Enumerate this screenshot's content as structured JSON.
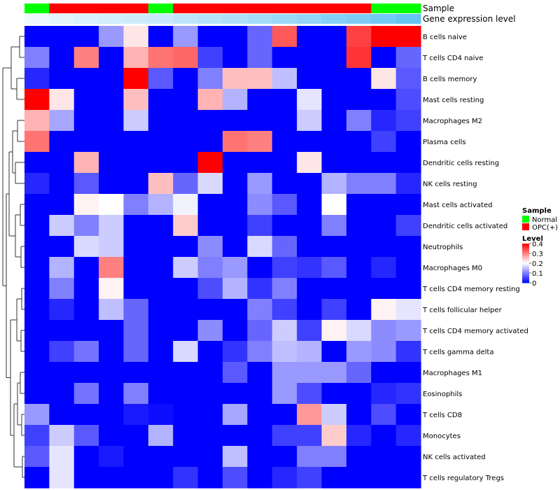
{
  "chart_data": {
    "type": "heatmap",
    "annotation_labels": {
      "sample": "Sample",
      "expression": "Gene expression level"
    },
    "samples": [
      "Normal",
      "OPC(+)",
      "OPC(+)",
      "OPC(+)",
      "OPC(+)",
      "Normal",
      "OPC(+)",
      "OPC(+)",
      "OPC(+)",
      "OPC(+)",
      "OPC(+)",
      "OPC(+)",
      "OPC(+)",
      "OPC(+)",
      "Normal",
      "Normal"
    ],
    "expression_track": [
      0.02,
      0.05,
      0.08,
      0.1,
      0.12,
      0.14,
      0.17,
      0.2,
      0.22,
      0.25,
      0.28,
      0.31,
      0.35,
      0.38,
      0.41,
      0.45
    ],
    "rows": [
      "B cells naive",
      "T cells CD4 naive",
      "B cells memory",
      "Mast cells resting",
      "Macrophages M2",
      "Plasma cells",
      "Dendritic cells resting",
      "NK cells resting",
      "Mast cells activated",
      "Dendritic cells activated",
      "Neutrophils",
      "Macrophages M0",
      "T cells CD4 memory resting",
      "T cells follicular helper",
      "T cells CD4 memory activated",
      "T cells gamma delta",
      "Macrophages M1",
      "Eosinophils",
      "T cells CD8",
      "Monocytes",
      "NK cells activated",
      "T cells regulatory  Tregs"
    ],
    "values": [
      [
        0,
        0,
        0,
        0.12,
        0.22,
        0,
        0.12,
        0,
        0,
        0.08,
        0.33,
        0,
        0,
        0.35,
        0.4,
        0.4
      ],
      [
        0.1,
        0,
        0.3,
        0,
        0.26,
        0.31,
        0.32,
        0.05,
        0,
        0.08,
        0,
        0,
        0,
        0.36,
        0,
        0.08
      ],
      [
        0.03,
        0,
        0,
        0,
        0.4,
        0.07,
        0,
        0.1,
        0.25,
        0.25,
        0.15,
        0,
        0,
        0,
        0.22,
        0.07
      ],
      [
        0.4,
        0.22,
        0,
        0,
        0.25,
        0,
        0,
        0.26,
        0.14,
        0,
        0,
        0.18,
        0,
        0,
        0,
        0.06
      ],
      [
        0.26,
        0.13,
        0,
        0,
        0.16,
        0,
        0,
        0,
        0,
        0,
        0,
        0.16,
        0,
        0.1,
        0.03,
        0.05
      ],
      [
        0.31,
        0,
        0,
        0,
        0,
        0,
        0,
        0,
        0.31,
        0.3,
        0,
        0,
        0,
        0,
        0.05,
        0
      ],
      [
        0,
        0,
        0.26,
        0,
        0,
        0,
        0,
        0.4,
        0,
        0,
        0,
        0.22,
        0,
        0,
        0,
        0
      ],
      [
        0.03,
        0,
        0.07,
        0,
        0,
        0.25,
        0.08,
        0.17,
        0,
        0.12,
        0,
        0,
        0.14,
        0.1,
        0.1,
        0.03
      ],
      [
        0,
        0,
        0.21,
        0.2,
        0.1,
        0.14,
        0.19,
        0,
        0,
        0.11,
        0.07,
        0,
        0.2,
        0,
        0,
        0
      ],
      [
        0,
        0.16,
        0.1,
        0.16,
        0,
        0,
        0.24,
        0,
        0,
        0.05,
        0,
        0,
        0.1,
        0,
        0,
        0.05
      ],
      [
        0,
        0,
        0.17,
        0.16,
        0,
        0,
        0,
        0.11,
        0,
        0.17,
        0.08,
        0,
        0,
        0,
        0,
        0
      ],
      [
        0,
        0.14,
        0,
        0.3,
        0,
        0,
        0.16,
        0.1,
        0.12,
        0,
        0.05,
        0.04,
        0.07,
        0,
        0.03,
        0
      ],
      [
        0,
        0.1,
        0,
        0.21,
        0,
        0,
        0,
        0.06,
        0.14,
        0.04,
        0.1,
        0,
        0,
        0,
        0,
        0
      ],
      [
        0,
        0.03,
        0,
        0.15,
        0.08,
        0,
        0,
        0,
        0,
        0.1,
        0.05,
        0,
        0.05,
        0,
        0.21,
        0.18
      ],
      [
        0,
        0,
        0,
        0,
        0.08,
        0,
        0,
        0.11,
        0,
        0.08,
        0.16,
        0.05,
        0.21,
        0.17,
        0.11,
        0.12
      ],
      [
        0,
        0.05,
        0.09,
        0,
        0.08,
        0,
        0.17,
        0,
        0.04,
        0.1,
        0.15,
        0.14,
        0,
        0.12,
        0.11,
        0.04
      ],
      [
        0,
        0,
        0,
        0,
        0,
        0,
        0,
        0,
        0.07,
        0,
        0.12,
        0.12,
        0.12,
        0.08,
        0,
        0
      ],
      [
        0,
        0,
        0.09,
        0,
        0.1,
        0,
        0,
        0,
        0,
        0,
        0.12,
        0.06,
        0,
        0,
        0.03,
        0.04
      ],
      [
        0.12,
        0,
        0,
        0,
        0.02,
        0.01,
        0,
        0,
        0.13,
        0,
        0,
        0.28,
        0.16,
        0,
        0.06,
        0
      ],
      [
        0.05,
        0.16,
        0.07,
        0,
        0,
        0.14,
        0,
        0,
        0,
        0,
        0.05,
        0.05,
        0.24,
        0.03,
        0,
        0.03
      ],
      [
        0.07,
        0.18,
        0,
        0.02,
        0,
        0,
        0,
        0,
        0.15,
        0,
        0,
        0.1,
        0.1,
        0,
        0,
        0
      ],
      [
        0,
        0.18,
        0,
        0,
        0,
        0,
        0.04,
        0,
        0.06,
        0,
        0.03,
        0.05,
        0,
        0,
        0,
        0
      ]
    ],
    "color_scale": {
      "min": 0,
      "max": 0.4,
      "colors": [
        "#0000FF",
        "#FFFFFF",
        "#FF0000"
      ]
    },
    "legend": {
      "sample_title": "Sample",
      "sample_items": [
        {
          "label": "Normal",
          "color": "#00FF00"
        },
        {
          "label": "OPC(+)",
          "color": "#FF0000"
        }
      ],
      "level_title": "Level",
      "level_ticks": [
        "0.4",
        "0.3",
        "0.2",
        "0.1",
        "0"
      ]
    }
  }
}
